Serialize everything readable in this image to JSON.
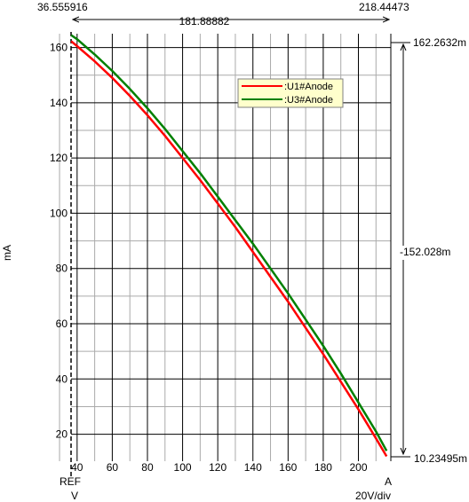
{
  "chart_data": {
    "type": "line",
    "xlim": [
      36.555916,
      218.44473
    ],
    "ylim": [
      10.23495,
      165
    ],
    "grid": true,
    "legend_position": "top-right",
    "ylabel": "mA",
    "x_ticks": [
      40,
      60,
      80,
      100,
      120,
      140,
      160,
      180,
      200
    ],
    "y_ticks": [
      20,
      40,
      60,
      80,
      100,
      120,
      140,
      160
    ],
    "x_tick_labels": [
      "40",
      "60",
      "80",
      "100",
      "120",
      "140",
      "160",
      "180",
      "200"
    ],
    "y_tick_labels": [
      "20",
      "40",
      "60",
      "80",
      "100",
      "120",
      "140",
      "160"
    ],
    "series": [
      {
        "name": ":U1#Anode",
        "color": "#ff0000",
        "x": [
          36.6,
          40,
          50,
          60,
          70,
          80,
          90,
          100,
          110,
          120,
          130,
          140,
          150,
          160,
          170,
          180,
          190,
          200,
          210,
          216
        ],
        "y": [
          162.3,
          160.5,
          155,
          149,
          142.5,
          135.5,
          128,
          120,
          112,
          103.5,
          95,
          86,
          77,
          68,
          58.5,
          49,
          39,
          29,
          18.5,
          12
        ]
      },
      {
        "name": ":U3#Anode",
        "color": "#008000",
        "x": [
          36.6,
          40,
          50,
          60,
          70,
          80,
          90,
          100,
          110,
          120,
          130,
          140,
          150,
          160,
          170,
          180,
          190,
          200,
          210,
          216
        ],
        "y": [
          164.5,
          163,
          157.5,
          151.5,
          145,
          138,
          130.5,
          122.5,
          114.5,
          106,
          97.5,
          89,
          80,
          71,
          61.5,
          52,
          42,
          31.5,
          21,
          14
        ]
      }
    ]
  },
  "cursors": {
    "left_x": "36.555916",
    "right_x": "218.44473",
    "delta_x": "181.88882",
    "top_y": "162.2632m",
    "bottom_y": "10.23495m",
    "delta_y": "-152.028m"
  },
  "scale": {
    "ref_label": "REF",
    "ref_unit": "V",
    "a_label": "A",
    "a_scale": "20V/div"
  },
  "colors": {
    "grid_major": "#000000",
    "grid_minor": "#aaaaaa",
    "legend_bg": "#ffffcc",
    "legend_border": "#808080"
  }
}
